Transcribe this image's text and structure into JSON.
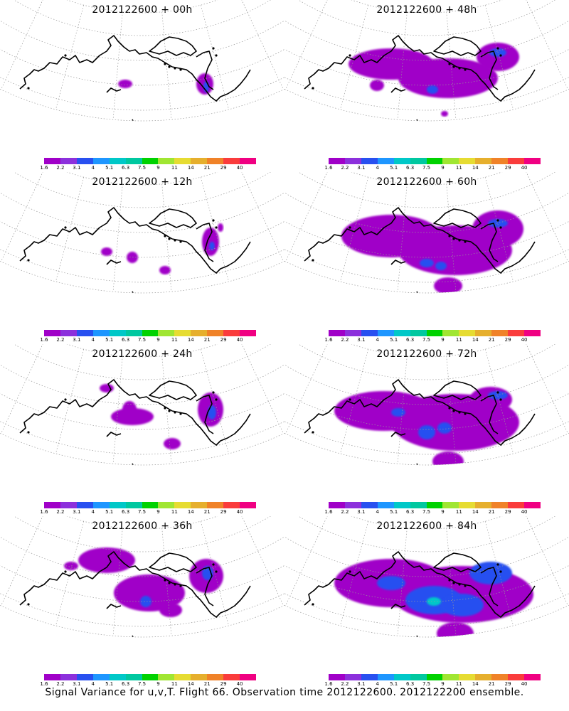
{
  "panels": [
    {
      "title": "2012122600 + 00h",
      "lead_hours": 0
    },
    {
      "title": "2012122600 + 48h",
      "lead_hours": 48
    },
    {
      "title": "2012122600 + 12h",
      "lead_hours": 12
    },
    {
      "title": "2012122600 + 60h",
      "lead_hours": 60
    },
    {
      "title": "2012122600 + 24h",
      "lead_hours": 24
    },
    {
      "title": "2012122600 + 72h",
      "lead_hours": 72
    },
    {
      "title": "2012122600 + 36h",
      "lead_hours": 36
    },
    {
      "title": "2012122600 + 84h",
      "lead_hours": 84
    }
  ],
  "colorbar": {
    "labels": [
      "1.6",
      "2.2",
      "3.1",
      "4",
      "5.1",
      "6.3",
      "7.5",
      "9",
      "11",
      "14",
      "21",
      "29",
      "40"
    ],
    "colors": [
      "#a000c8",
      "#8c30dc",
      "#2850f0",
      "#1e96ff",
      "#00c8c8",
      "#00c8a0",
      "#00d200",
      "#a0e632",
      "#e6dc32",
      "#e6af2d",
      "#f08228",
      "#fa3c3c",
      "#f00082"
    ]
  },
  "colors": {
    "coastline": "#000000",
    "graticule": "#999999",
    "field_low": "#a000c8",
    "field_mid": "#2850f0",
    "field_high": "#00c8c8"
  },
  "caption": "Signal Variance for u,v,T. Flight 66. Observation time 2012122600. 2012122200 ensemble."
}
